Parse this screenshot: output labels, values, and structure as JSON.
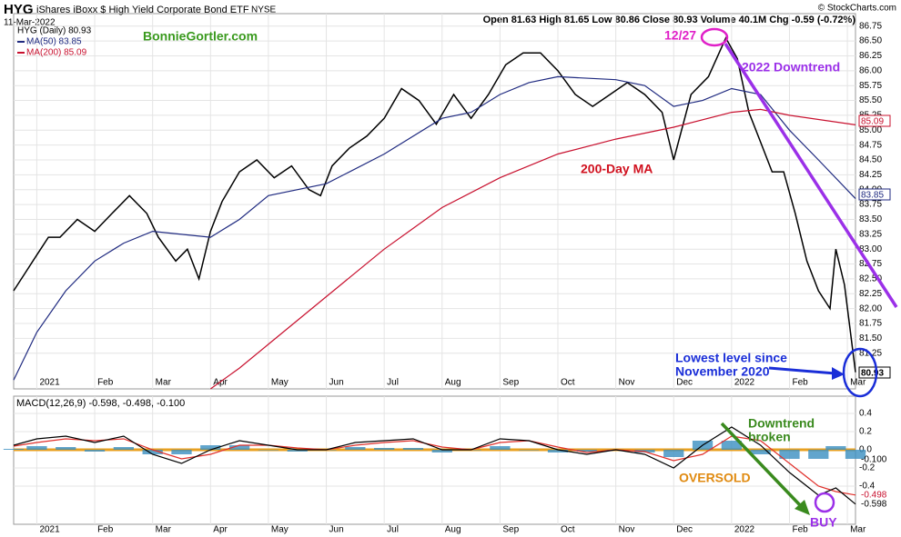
{
  "header": {
    "symbol": "HYG",
    "name": "iShares iBoxx $ High Yield Corporate Bond ETF",
    "exchange": "NYSE",
    "date": "11-Mar-2022",
    "quote": "Open 81.63 High 81.65 Low 80.86 Close 80.93 Volume 40.1M Chg -0.59 (-0.72%)",
    "credit": "© StockCharts.com"
  },
  "chart_data": [
    {
      "type": "line",
      "xlim": [
        -0.4,
        14.14
      ],
      "ylim": [
        80.65,
        86.96
      ],
      "xticks": [
        {
          "value": 0,
          "label": "2021"
        },
        {
          "value": 1,
          "label": "Feb"
        },
        {
          "value": 2,
          "label": "Mar"
        },
        {
          "value": 3,
          "label": "Apr"
        },
        {
          "value": 4,
          "label": "May"
        },
        {
          "value": 5,
          "label": "Jun"
        },
        {
          "value": 6,
          "label": "Jul"
        },
        {
          "value": 7,
          "label": "Aug"
        },
        {
          "value": 8,
          "label": "Sep"
        },
        {
          "value": 9,
          "label": "Oct"
        },
        {
          "value": 10,
          "label": "Nov"
        },
        {
          "value": 11,
          "label": "Dec"
        },
        {
          "value": 12,
          "label": "2022"
        },
        {
          "value": 13,
          "label": "Feb"
        },
        {
          "value": 14,
          "label": "Mar"
        }
      ],
      "yticks": [
        81.25,
        {
          "value": 81.5,
          "label": "81.50"
        },
        81.75,
        {
          "value": 82,
          "label": "82.00"
        },
        82.25,
        {
          "value": 82.5,
          "label": "82.50"
        },
        82.75,
        {
          "value": 83,
          "label": "83.00"
        },
        83.25,
        {
          "value": 83.5,
          "label": "83.50"
        },
        83.75,
        {
          "value": 84,
          "label": "84.00"
        },
        84.25,
        {
          "value": 84.5,
          "label": "84.50"
        },
        84.75,
        {
          "value": 85,
          "label": "85.00"
        },
        85.25,
        {
          "value": 85.5,
          "label": "85.50"
        },
        85.75,
        {
          "value": 86,
          "label": "86.00"
        },
        86.25,
        {
          "value": 86.5,
          "label": "86.50"
        },
        86.75
      ],
      "grid": true,
      "series": [
        {
          "name": "HYG (Daily) 80.93",
          "color": "#000000",
          "x": [
            -0.4,
            -0.2,
            0,
            0.2,
            0.4,
            0.7,
            1,
            1.3,
            1.6,
            1.9,
            2.1,
            2.4,
            2.6,
            2.8,
            3,
            3.2,
            3.5,
            3.8,
            4.1,
            4.4,
            4.7,
            4.9,
            5.1,
            5.4,
            5.7,
            6,
            6.3,
            6.6,
            6.9,
            7.2,
            7.5,
            7.8,
            8.1,
            8.4,
            8.7,
            9,
            9.3,
            9.6,
            9.9,
            10.2,
            10.5,
            10.8,
            11,
            11.3,
            11.6,
            11.9,
            12.1,
            12.3,
            12.5,
            12.7,
            12.9,
            13.1,
            13.3,
            13.5,
            13.7,
            13.8,
            13.95,
            14.14
          ],
          "values": [
            82.3,
            82.6,
            82.9,
            83.2,
            83.2,
            83.5,
            83.3,
            83.6,
            83.9,
            83.6,
            83.2,
            82.8,
            83.0,
            82.5,
            83.3,
            83.8,
            84.3,
            84.5,
            84.2,
            84.4,
            84.0,
            83.9,
            84.4,
            84.7,
            84.9,
            85.2,
            85.7,
            85.5,
            85.1,
            85.6,
            85.2,
            85.6,
            86.1,
            86.3,
            86.3,
            86.0,
            85.6,
            85.4,
            85.6,
            85.8,
            85.6,
            85.3,
            84.5,
            85.6,
            85.9,
            86.55,
            86.2,
            85.3,
            84.8,
            84.3,
            84.3,
            83.6,
            82.8,
            82.3,
            82.0,
            83.0,
            82.4,
            80.93
          ]
        },
        {
          "name": "MA(50) 83.85",
          "color": "#1f2a80",
          "x": [
            -0.4,
            0,
            0.5,
            1,
            1.5,
            2,
            3,
            3.5,
            4,
            5,
            6,
            7,
            7.5,
            8,
            8.5,
            9,
            10,
            10.5,
            11,
            11.5,
            12,
            12.5,
            13,
            13.5,
            14.14
          ],
          "values": [
            80.8,
            81.6,
            82.3,
            82.8,
            83.1,
            83.3,
            83.2,
            83.5,
            83.9,
            84.1,
            84.6,
            85.2,
            85.3,
            85.6,
            85.8,
            85.9,
            85.85,
            85.75,
            85.4,
            85.5,
            85.7,
            85.6,
            85.0,
            84.5,
            83.85
          ]
        },
        {
          "name": "MA(200) 85.09",
          "color": "#c8102e",
          "x": [
            3,
            3.5,
            4,
            5,
            6,
            7,
            8,
            9,
            10,
            11,
            12,
            12.5,
            13,
            14.14
          ],
          "values": [
            80.65,
            81.0,
            81.4,
            82.2,
            83.0,
            83.7,
            84.2,
            84.6,
            84.85,
            85.05,
            85.3,
            85.35,
            85.25,
            85.09
          ]
        }
      ],
      "annotations": [
        "BonnieGortler.com",
        "12/27",
        "2022 Downtrend",
        "200-Day MA",
        "Lowest level since",
        "November 2020",
        "83.85",
        "85.09",
        "80.93"
      ]
    },
    {
      "type": "line",
      "title": "MACD(12,26,9) -0.598, -0.498, -0.100",
      "xlim": [
        -0.4,
        14.14
      ],
      "ylim": [
        -0.82,
        0.59
      ],
      "xticks": [
        {
          "value": 0,
          "label": "2021"
        },
        {
          "value": 1,
          "label": "Feb"
        },
        {
          "value": 2,
          "label": "Mar"
        },
        {
          "value": 3,
          "label": "Apr"
        },
        {
          "value": 4,
          "label": "May"
        },
        {
          "value": 5,
          "label": "Jun"
        },
        {
          "value": 6,
          "label": "Jul"
        },
        {
          "value": 7,
          "label": "Aug"
        },
        {
          "value": 8,
          "label": "Sep"
        },
        {
          "value": 9,
          "label": "Oct"
        },
        {
          "value": 10,
          "label": "Nov"
        },
        {
          "value": 11,
          "label": "Dec"
        },
        {
          "value": 12,
          "label": "2022"
        },
        {
          "value": 13,
          "label": "Feb"
        },
        {
          "value": 14,
          "label": "Mar"
        }
      ],
      "yticks": [
        0.4,
        0.2,
        {
          "value": 0,
          "label": "0.0"
        },
        -0.2,
        -0.4
      ],
      "grid": true,
      "series": [
        {
          "name": "Histogram",
          "style": "histogram",
          "color": "#3a8fc0",
          "x": [
            -0.4,
            0,
            0.5,
            1,
            1.5,
            2,
            2.5,
            3,
            3.5,
            4,
            4.5,
            5,
            5.5,
            6,
            6.5,
            7,
            7.5,
            8,
            8.5,
            9,
            9.5,
            10,
            10.5,
            11,
            11.5,
            12,
            12.5,
            13,
            13.5,
            13.8,
            14.14
          ],
          "values": [
            0.01,
            0.04,
            0.03,
            -0.02,
            0.03,
            -0.05,
            -0.05,
            0.05,
            0.05,
            0.0,
            -0.02,
            0.0,
            0.03,
            0.02,
            0.02,
            -0.03,
            0.0,
            0.04,
            0.0,
            -0.03,
            -0.02,
            0.0,
            -0.03,
            -0.08,
            0.1,
            0.1,
            -0.05,
            -0.1,
            -0.1,
            0.04,
            -0.1
          ]
        },
        {
          "name": "Signal",
          "color": "#e0302b",
          "x": [
            -0.4,
            0,
            0.5,
            1,
            1.5,
            2,
            2.5,
            3,
            3.5,
            4,
            4.5,
            5,
            5.5,
            6,
            6.5,
            7,
            7.5,
            8,
            8.5,
            9,
            9.5,
            10,
            10.5,
            11,
            11.5,
            12,
            12.5,
            13,
            13.5,
            13.8,
            14.14
          ],
          "values": [
            0.04,
            0.08,
            0.12,
            0.1,
            0.12,
            0.0,
            -0.1,
            -0.05,
            0.05,
            0.05,
            0.02,
            0.0,
            0.05,
            0.08,
            0.1,
            0.03,
            0.0,
            0.08,
            0.1,
            0.03,
            -0.03,
            0.0,
            -0.02,
            -0.12,
            -0.05,
            0.15,
            0.1,
            -0.15,
            -0.4,
            -0.46,
            -0.498
          ]
        },
        {
          "name": "MACD",
          "color": "#000000",
          "x": [
            -0.4,
            0,
            0.5,
            1,
            1.5,
            2,
            2.5,
            3,
            3.5,
            4,
            4.5,
            5,
            5.5,
            6,
            6.5,
            7,
            7.5,
            8,
            8.5,
            9,
            9.5,
            10,
            10.5,
            11,
            11.5,
            12,
            12.5,
            13,
            13.5,
            13.8,
            14.14
          ],
          "values": [
            0.05,
            0.12,
            0.15,
            0.08,
            0.15,
            -0.05,
            -0.15,
            0.0,
            0.1,
            0.05,
            0.0,
            0.0,
            0.08,
            0.1,
            0.12,
            0.0,
            0.0,
            0.12,
            0.1,
            0.0,
            -0.05,
            0.0,
            -0.05,
            -0.2,
            0.05,
            0.25,
            0.05,
            -0.25,
            -0.5,
            -0.42,
            -0.598
          ]
        }
      ],
      "annotations": [
        "Downtrend",
        "broken",
        "OVERSOLD",
        "BUY",
        "-0.100",
        "-0.498",
        "-0.598"
      ]
    }
  ]
}
